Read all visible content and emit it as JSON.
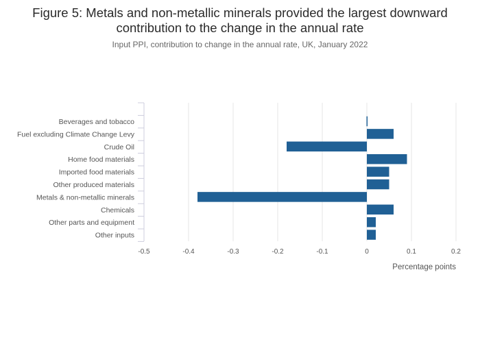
{
  "header": {
    "title_line1": "Figure 5: Metals and non-metallic minerals provided the largest downward",
    "title_line2": "contribution to the change in the annual rate",
    "subtitle": "Input PPI, contribution to change in the annual rate, UK, January 2022"
  },
  "chart_data": {
    "type": "bar",
    "orientation": "horizontal",
    "categories": [
      "Beverages and tobacco",
      "Fuel excluding Climate Change Levy",
      "Crude Oil",
      "Home food materials",
      "Imported food materials",
      "Other produced materials",
      "Metals & non-metallic minerals",
      "Chemicals",
      "Other parts and equipment",
      "Other inputs"
    ],
    "values": [
      0.0,
      0.06,
      -0.18,
      0.09,
      0.05,
      0.05,
      -0.38,
      0.06,
      0.02,
      0.02
    ],
    "xlabel": "Percentage points",
    "xlim": [
      -0.5,
      0.2
    ],
    "xticks": [
      -0.5,
      -0.4,
      -0.3,
      -0.2,
      -0.1,
      0,
      0.1,
      0.2
    ],
    "xtick_labels": [
      "-0.5",
      "-0.4",
      "-0.3",
      "-0.2",
      "-0.1",
      "0",
      "0.1",
      "0.2"
    ],
    "grid": true,
    "bar_color": "#206095",
    "grid_color": "#e5e5e5"
  }
}
